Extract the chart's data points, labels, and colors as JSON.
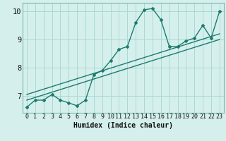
{
  "xlabel": "Humidex (Indice chaleur)",
  "bg_color": "#d5f0ec",
  "grid_color": "#aad8d3",
  "line_color": "#1e7a6e",
  "xlim": [
    -0.5,
    23.5
  ],
  "ylim": [
    6.4,
    10.3
  ],
  "yticks": [
    7,
    8,
    9,
    10
  ],
  "xticks": [
    0,
    1,
    2,
    3,
    4,
    5,
    6,
    7,
    8,
    9,
    10,
    11,
    12,
    13,
    14,
    15,
    16,
    17,
    18,
    19,
    20,
    21,
    22,
    23
  ],
  "x_data": [
    0,
    1,
    2,
    3,
    4,
    5,
    6,
    7,
    8,
    9,
    10,
    11,
    12,
    13,
    14,
    15,
    16,
    17,
    18,
    19,
    20,
    21,
    22,
    23
  ],
  "y_data": [
    6.6,
    6.85,
    6.85,
    7.05,
    6.85,
    6.75,
    6.65,
    6.85,
    7.75,
    7.9,
    8.25,
    8.65,
    8.75,
    9.6,
    10.05,
    10.1,
    9.7,
    8.75,
    8.75,
    8.95,
    9.05,
    9.5,
    9.05,
    10.0
  ],
  "trend1_x": [
    0,
    23
  ],
  "trend1_y": [
    6.85,
    9.0
  ],
  "trend2_x": [
    0,
    23
  ],
  "trend2_y": [
    7.05,
    9.2
  ]
}
